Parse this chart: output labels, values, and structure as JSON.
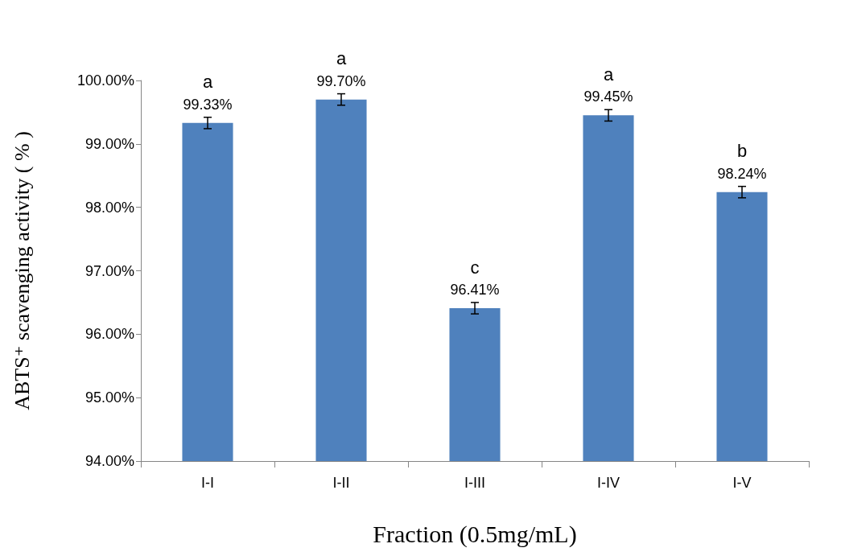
{
  "chart_data": {
    "type": "bar",
    "xlabel": "Fraction (0.5mg/mL)",
    "ylabel": "ABTS⁺ scavenging activity ( % )",
    "categories": [
      "I-I",
      "I-II",
      "I-III",
      "I-IV",
      "I-V"
    ],
    "values": [
      99.33,
      99.7,
      96.41,
      99.45,
      98.24
    ],
    "value_labels": [
      "99.33%",
      "99.70%",
      "96.41%",
      "99.45%",
      "98.24%"
    ],
    "errors": [
      0.09,
      0.09,
      0.09,
      0.09,
      0.09
    ],
    "color": "#4f81bd",
    "ylim": [
      94,
      100
    ],
    "yticks": [
      {
        "value": 94,
        "label": "94.00%"
      },
      {
        "value": 95,
        "label": "95.00%"
      },
      {
        "value": 96,
        "label": "96.00%"
      },
      {
        "value": 97,
        "label": "97.00%"
      },
      {
        "value": 98,
        "label": "98.00%"
      },
      {
        "value": 99,
        "label": "99.00%"
      },
      {
        "value": 100,
        "label": "100.00%"
      }
    ],
    "annotations": [
      {
        "text": "a",
        "x": "I-I",
        "y": 99.33
      },
      {
        "text": "a",
        "x": "I-II",
        "y": 99.7
      },
      {
        "text": "c",
        "x": "I-III",
        "y": 96.41
      },
      {
        "text": "a",
        "x": "I-IV",
        "y": 99.45
      },
      {
        "text": "b",
        "x": "I-V",
        "y": 98.24
      }
    ]
  }
}
